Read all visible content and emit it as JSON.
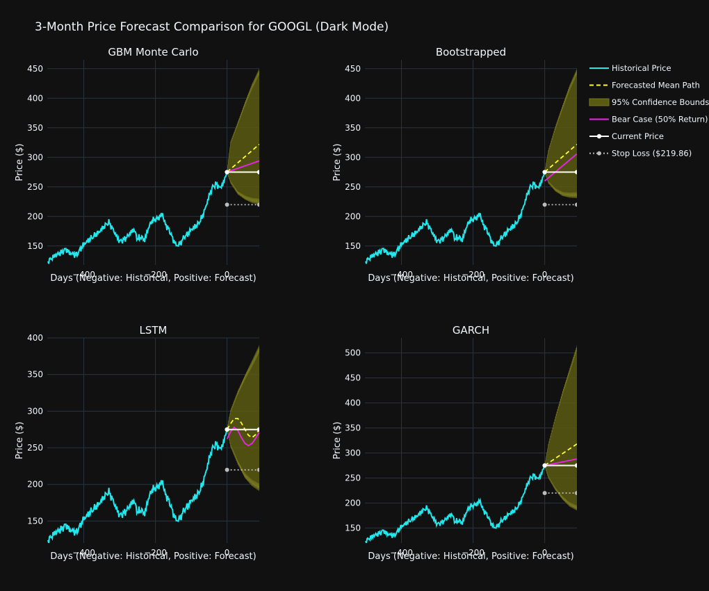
{
  "title": "3-Month Price Forecast Comparison for GOOGL (Dark Mode)",
  "colors": {
    "background": "#111111",
    "grid": "#283442",
    "text": "#f2f5fa",
    "historical": "#22e8ee",
    "mean_path": "#ffff33",
    "confidence_fill": "#5a5a12",
    "confidence_stroke": "#76761e",
    "bear": "#ee22ee",
    "current": "#ffffff",
    "stop_loss": "#bbbbbb"
  },
  "legend": [
    {
      "label": "Historical Price",
      "kind": "historical"
    },
    {
      "label": "Forecasted Mean Path",
      "kind": "mean"
    },
    {
      "label": "95% Confidence Bounds",
      "kind": "band"
    },
    {
      "label": "Bear Case (50% Return)",
      "kind": "bear"
    },
    {
      "label": "Current Price",
      "kind": "current"
    },
    {
      "label": "Stop Loss ($219.86)",
      "kind": "stop"
    }
  ],
  "chart_data": [
    {
      "type": "line",
      "title": "GBM Monte Carlo",
      "xlabel": "Days (Negative: Historical, Positive: Forecast)",
      "ylabel": "Price ($)",
      "xlim": [
        -502,
        90
      ],
      "ylim": [
        118,
        465
      ],
      "xticks": [
        -400,
        -200,
        0
      ],
      "yticks": [
        150,
        200,
        250,
        300,
        350,
        400,
        450
      ],
      "current_price": 275,
      "stop_loss": 219.86,
      "mean_path": [
        [
          0,
          275
        ],
        [
          90,
          322
        ]
      ],
      "bear_case": [
        [
          0,
          275
        ],
        [
          90,
          294
        ]
      ],
      "band_upper": [
        [
          0,
          275
        ],
        [
          10,
          325
        ],
        [
          30,
          357
        ],
        [
          50,
          390
        ],
        [
          70,
          420
        ],
        [
          90,
          445
        ]
      ],
      "band_lower": [
        [
          0,
          275
        ],
        [
          10,
          258
        ],
        [
          30,
          240
        ],
        [
          50,
          232
        ],
        [
          70,
          227
        ],
        [
          90,
          225
        ]
      ]
    },
    {
      "type": "line",
      "title": "Bootstrapped",
      "xlabel": "Days (Negative: Historical, Positive: Forecast)",
      "ylabel": "Price ($)",
      "xlim": [
        -502,
        90
      ],
      "ylim": [
        118,
        465
      ],
      "xticks": [
        -400,
        -200,
        0
      ],
      "yticks": [
        150,
        200,
        250,
        300,
        350,
        400,
        450
      ],
      "current_price": 275,
      "stop_loss": 219.86,
      "mean_path": [
        [
          0,
          275
        ],
        [
          90,
          322
        ]
      ],
      "bear_case": [
        [
          0,
          260
        ],
        [
          90,
          306
        ]
      ],
      "band_upper": [
        [
          0,
          275
        ],
        [
          10,
          310
        ],
        [
          30,
          350
        ],
        [
          50,
          385
        ],
        [
          70,
          418
        ],
        [
          90,
          445
        ]
      ],
      "band_lower": [
        [
          0,
          275
        ],
        [
          10,
          258
        ],
        [
          30,
          245
        ],
        [
          50,
          238
        ],
        [
          70,
          236
        ],
        [
          90,
          236
        ]
      ]
    },
    {
      "type": "line",
      "title": "LSTM",
      "xlabel": "Days (Negative: Historical, Positive: Forecast)",
      "ylabel": "Price ($)",
      "xlim": [
        -502,
        90
      ],
      "ylim": [
        120,
        400
      ],
      "xticks": [
        -400,
        -200,
        0
      ],
      "yticks": [
        150,
        200,
        250,
        300,
        350,
        400
      ],
      "current_price": 275,
      "stop_loss": 219.86,
      "mean_path": [
        [
          0,
          275
        ],
        [
          10,
          283
        ],
        [
          20,
          290
        ],
        [
          30,
          290
        ],
        [
          40,
          284
        ],
        [
          50,
          275
        ],
        [
          60,
          267
        ],
        [
          70,
          264
        ],
        [
          80,
          268
        ],
        [
          90,
          275
        ]
      ],
      "bear_case": [
        [
          0,
          262
        ],
        [
          10,
          272
        ],
        [
          20,
          278
        ],
        [
          30,
          274
        ],
        [
          40,
          264
        ],
        [
          50,
          256
        ],
        [
          60,
          253
        ],
        [
          70,
          256
        ],
        [
          80,
          263
        ],
        [
          90,
          271
        ]
      ],
      "band_upper": [
        [
          0,
          275
        ],
        [
          10,
          300
        ],
        [
          30,
          325
        ],
        [
          50,
          346
        ],
        [
          70,
          365
        ],
        [
          90,
          385
        ]
      ],
      "band_lower": [
        [
          0,
          275
        ],
        [
          10,
          253
        ],
        [
          30,
          230
        ],
        [
          50,
          212
        ],
        [
          70,
          202
        ],
        [
          90,
          196
        ]
      ]
    },
    {
      "type": "line",
      "title": "GARCH",
      "xlabel": "Days (Negative: Historical, Positive: Forecast)",
      "ylabel": "Price ($)",
      "xlim": [
        -502,
        90
      ],
      "ylim": [
        120,
        530
      ],
      "xticks": [
        -400,
        -200,
        0
      ],
      "yticks": [
        150,
        200,
        250,
        300,
        350,
        400,
        450,
        500
      ],
      "current_price": 275,
      "stop_loss": 219.86,
      "mean_path": [
        [
          0,
          275
        ],
        [
          90,
          318
        ]
      ],
      "bear_case": [
        [
          0,
          275
        ],
        [
          90,
          288
        ]
      ],
      "band_upper": [
        [
          0,
          275
        ],
        [
          10,
          315
        ],
        [
          30,
          370
        ],
        [
          50,
          420
        ],
        [
          70,
          465
        ],
        [
          90,
          510
        ]
      ],
      "band_lower": [
        [
          0,
          275
        ],
        [
          10,
          252
        ],
        [
          30,
          228
        ],
        [
          50,
          210
        ],
        [
          70,
          197
        ],
        [
          90,
          190
        ]
      ]
    }
  ],
  "historical_price": [
    [
      -500,
      124
    ],
    [
      -480,
      134
    ],
    [
      -460,
      140
    ],
    [
      -450,
      145
    ],
    [
      -440,
      138
    ],
    [
      -420,
      135
    ],
    [
      -400,
      153
    ],
    [
      -380,
      163
    ],
    [
      -360,
      172
    ],
    [
      -340,
      185
    ],
    [
      -330,
      190
    ],
    [
      -320,
      180
    ],
    [
      -310,
      168
    ],
    [
      -300,
      158
    ],
    [
      -290,
      160
    ],
    [
      -280,
      165
    ],
    [
      -270,
      172
    ],
    [
      -260,
      178
    ],
    [
      -250,
      162
    ],
    [
      -240,
      165
    ],
    [
      -230,
      160
    ],
    [
      -220,
      180
    ],
    [
      -210,
      192
    ],
    [
      -200,
      195
    ],
    [
      -190,
      198
    ],
    [
      -180,
      205
    ],
    [
      -175,
      190
    ],
    [
      -170,
      185
    ],
    [
      -160,
      175
    ],
    [
      -150,
      160
    ],
    [
      -140,
      150
    ],
    [
      -130,
      155
    ],
    [
      -120,
      165
    ],
    [
      -110,
      170
    ],
    [
      -100,
      178
    ],
    [
      -90,
      182
    ],
    [
      -80,
      188
    ],
    [
      -70,
      198
    ],
    [
      -60,
      215
    ],
    [
      -50,
      235
    ],
    [
      -40,
      250
    ],
    [
      -30,
      255
    ],
    [
      -20,
      248
    ],
    [
      -10,
      256
    ],
    [
      0,
      275
    ]
  ]
}
